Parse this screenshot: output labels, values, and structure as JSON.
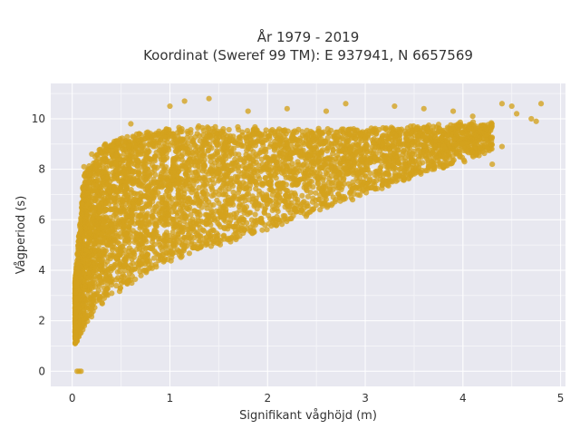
{
  "chart_data": {
    "type": "scatter",
    "title": "År 1979 - 2019",
    "subtitle": "Koordinat (Sweref 99 TM): E 937941, N 6657569",
    "xlabel": "Signifikant våghöjd (m)",
    "ylabel": "Vågperiod (s)",
    "xlim": [
      -0.22,
      5.05
    ],
    "ylim": [
      -0.6,
      11.4
    ],
    "x_ticks": [
      0,
      1,
      2,
      3,
      4,
      5
    ],
    "y_ticks": [
      0,
      2,
      4,
      6,
      8,
      10
    ],
    "x_tick_labels": [
      "0",
      "1",
      "2",
      "3",
      "4",
      "5"
    ],
    "y_tick_labels": [
      "0",
      "2",
      "4",
      "6",
      "8",
      "10"
    ],
    "grid": true,
    "colors": {
      "marker": "#D4A21C",
      "plot_bg": "#E8E8F0",
      "grid": "#FFFFFF"
    },
    "envelope": {
      "description_points": "dense cloud bounds in data units",
      "upper": [
        [
          0.03,
          3.6
        ],
        [
          0.12,
          7.8
        ],
        [
          0.3,
          8.9
        ],
        [
          0.5,
          9.3
        ],
        [
          0.9,
          9.6
        ],
        [
          1.5,
          9.7
        ],
        [
          2.0,
          9.6
        ],
        [
          2.5,
          9.6
        ],
        [
          3.0,
          9.6
        ],
        [
          3.5,
          9.7
        ],
        [
          4.0,
          9.8
        ],
        [
          4.3,
          9.8
        ]
      ],
      "lower": [
        [
          0.03,
          1.1
        ],
        [
          0.1,
          1.5
        ],
        [
          0.2,
          2.2
        ],
        [
          0.4,
          3.0
        ],
        [
          0.6,
          3.5
        ],
        [
          1.0,
          4.3
        ],
        [
          1.5,
          5.0
        ],
        [
          2.0,
          5.6
        ],
        [
          2.5,
          6.3
        ],
        [
          3.0,
          7.0
        ],
        [
          3.5,
          7.7
        ],
        [
          4.0,
          8.3
        ],
        [
          4.3,
          8.7
        ]
      ]
    },
    "outliers": [
      {
        "x": 0.05,
        "y": 0.0
      },
      {
        "x": 0.07,
        "y": 0.0
      },
      {
        "x": 0.09,
        "y": 0.0
      },
      {
        "x": 0.12,
        "y": 8.1
      },
      {
        "x": 0.2,
        "y": 8.6
      },
      {
        "x": 0.6,
        "y": 9.8
      },
      {
        "x": 1.0,
        "y": 10.5
      },
      {
        "x": 1.15,
        "y": 10.7
      },
      {
        "x": 1.4,
        "y": 10.8
      },
      {
        "x": 1.8,
        "y": 10.3
      },
      {
        "x": 2.2,
        "y": 10.4
      },
      {
        "x": 2.6,
        "y": 10.3
      },
      {
        "x": 2.8,
        "y": 10.6
      },
      {
        "x": 3.3,
        "y": 10.5
      },
      {
        "x": 3.6,
        "y": 10.4
      },
      {
        "x": 3.9,
        "y": 10.3
      },
      {
        "x": 4.4,
        "y": 10.6
      },
      {
        "x": 4.5,
        "y": 10.5
      },
      {
        "x": 4.55,
        "y": 10.2
      },
      {
        "x": 4.7,
        "y": 10.0
      },
      {
        "x": 4.8,
        "y": 10.6
      },
      {
        "x": 4.75,
        "y": 9.9
      },
      {
        "x": 4.3,
        "y": 8.2
      },
      {
        "x": 4.4,
        "y": 8.9
      },
      {
        "x": 4.1,
        "y": 10.1
      },
      {
        "x": 3.2,
        "y": 9.1
      }
    ]
  }
}
